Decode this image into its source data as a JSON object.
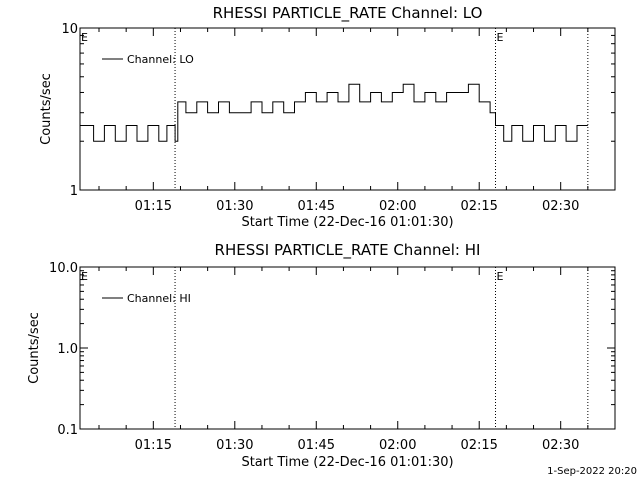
{
  "footer_timestamp": "1-Sep-2022 20:20",
  "chart_data": [
    {
      "type": "line",
      "title": "RHESSI PARTICLE_RATE Channel: LO",
      "xlabel": "Start Time (22-Dec-16 01:01:30)",
      "ylabel": "Counts/sec",
      "yscale": "log",
      "ylim": [
        1,
        10
      ],
      "ytick_labels": [
        "1",
        "10"
      ],
      "xlim": [
        "01:01:30",
        "02:40:00"
      ],
      "xtick_labels": [
        "01:15",
        "01:30",
        "01:45",
        "02:00",
        "02:15",
        "02:30"
      ],
      "xticks": [
        "01:15",
        "01:30",
        "01:45",
        "02:00",
        "02:15",
        "02:30"
      ],
      "event_lines": [
        "01:19:00",
        "02:18:00",
        "02:35:00"
      ],
      "event_markers": [
        {
          "time": "01:01:30",
          "label": "E"
        },
        {
          "time": "02:18:00",
          "label": "E"
        }
      ],
      "legend": {
        "label": "Channel: LO",
        "position": "top-left"
      },
      "series": [
        {
          "name": "Channel: LO",
          "x": [
            "01:01:30",
            "01:04:00",
            "01:06:00",
            "01:08:00",
            "01:10:00",
            "01:12:00",
            "01:14:00",
            "01:16:00",
            "01:17:30",
            "01:19:00",
            "01:19:30",
            "01:21:00",
            "01:23:00",
            "01:25:00",
            "01:27:00",
            "01:29:00",
            "01:31:00",
            "01:33:00",
            "01:35:00",
            "01:37:00",
            "01:39:00",
            "01:41:00",
            "01:43:00",
            "01:45:00",
            "01:47:00",
            "01:49:00",
            "01:51:00",
            "01:53:00",
            "01:55:00",
            "01:57:00",
            "01:59:00",
            "02:01:00",
            "02:03:00",
            "02:05:00",
            "02:07:00",
            "02:09:00",
            "02:11:00",
            "02:13:00",
            "02:15:00",
            "02:17:00",
            "02:18:00",
            "02:19:30",
            "02:21:00",
            "02:23:00",
            "02:25:00",
            "02:27:00",
            "02:29:00",
            "02:31:00",
            "02:33:00",
            "02:35:00"
          ],
          "values": [
            2.5,
            2.0,
            2.5,
            2.0,
            2.5,
            2.0,
            2.5,
            2.0,
            2.5,
            2.0,
            3.5,
            3.0,
            3.5,
            3.0,
            3.5,
            3.0,
            3.0,
            3.5,
            3.0,
            3.5,
            3.0,
            3.5,
            4.0,
            3.5,
            4.0,
            3.5,
            4.5,
            3.5,
            4.0,
            3.5,
            4.0,
            4.5,
            3.5,
            4.0,
            3.5,
            4.0,
            4.0,
            4.5,
            3.5,
            3.0,
            2.5,
            2.0,
            2.5,
            2.0,
            2.5,
            2.0,
            2.5,
            2.0,
            2.5,
            2.5
          ]
        }
      ]
    },
    {
      "type": "line",
      "title": "RHESSI PARTICLE_RATE Channel: HI",
      "xlabel": "Start Time (22-Dec-16 01:01:30)",
      "ylabel": "Counts/sec",
      "yscale": "log",
      "ylim": [
        0.1,
        10
      ],
      "ytick_labels": [
        "0.1",
        "1.0",
        "10.0"
      ],
      "xlim": [
        "01:01:30",
        "02:40:00"
      ],
      "xtick_labels": [
        "01:15",
        "01:30",
        "01:45",
        "02:00",
        "02:15",
        "02:30"
      ],
      "xticks": [
        "01:15",
        "01:30",
        "01:45",
        "02:00",
        "02:15",
        "02:30"
      ],
      "event_lines": [
        "01:19:00",
        "02:18:00",
        "02:35:00"
      ],
      "event_markers": [
        {
          "time": "01:01:30",
          "label": "E"
        },
        {
          "time": "02:18:00",
          "label": "E"
        }
      ],
      "legend": {
        "label": "Channel: HI",
        "position": "top-left"
      },
      "series": [
        {
          "name": "Channel: HI",
          "x": [],
          "values": []
        }
      ]
    }
  ]
}
